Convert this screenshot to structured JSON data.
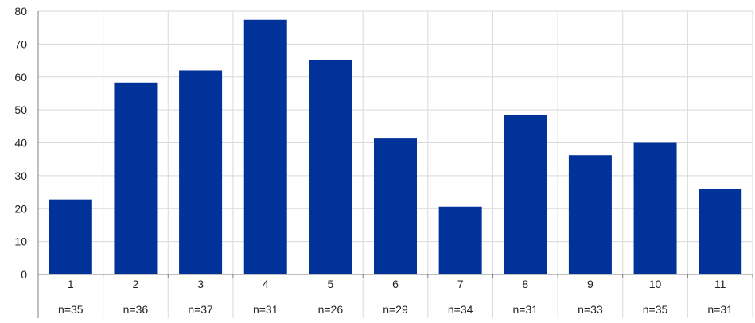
{
  "chart_data": {
    "type": "bar",
    "categories": [
      "1",
      "2",
      "3",
      "4",
      "5",
      "6",
      "7",
      "8",
      "9",
      "10",
      "11"
    ],
    "sample_sizes": [
      "n=35",
      "n=36",
      "n=37",
      "n=31",
      "n=26",
      "n=29",
      "n=34",
      "n=31",
      "n=33",
      "n=35",
      "n=31"
    ],
    "values": [
      22.8,
      58.3,
      62.0,
      77.4,
      65.1,
      41.3,
      20.6,
      48.4,
      36.2,
      40.0,
      26.0
    ],
    "ylim": [
      0,
      80
    ],
    "yticks": [
      0,
      10,
      20,
      30,
      40,
      50,
      60,
      70,
      80
    ],
    "grid": true,
    "legend": "none",
    "title": "",
    "xlabel": "",
    "ylabel": "",
    "colors": {
      "bar": "#003299",
      "grid": "#d9d9d9",
      "axis": "#7f7f7f"
    }
  }
}
